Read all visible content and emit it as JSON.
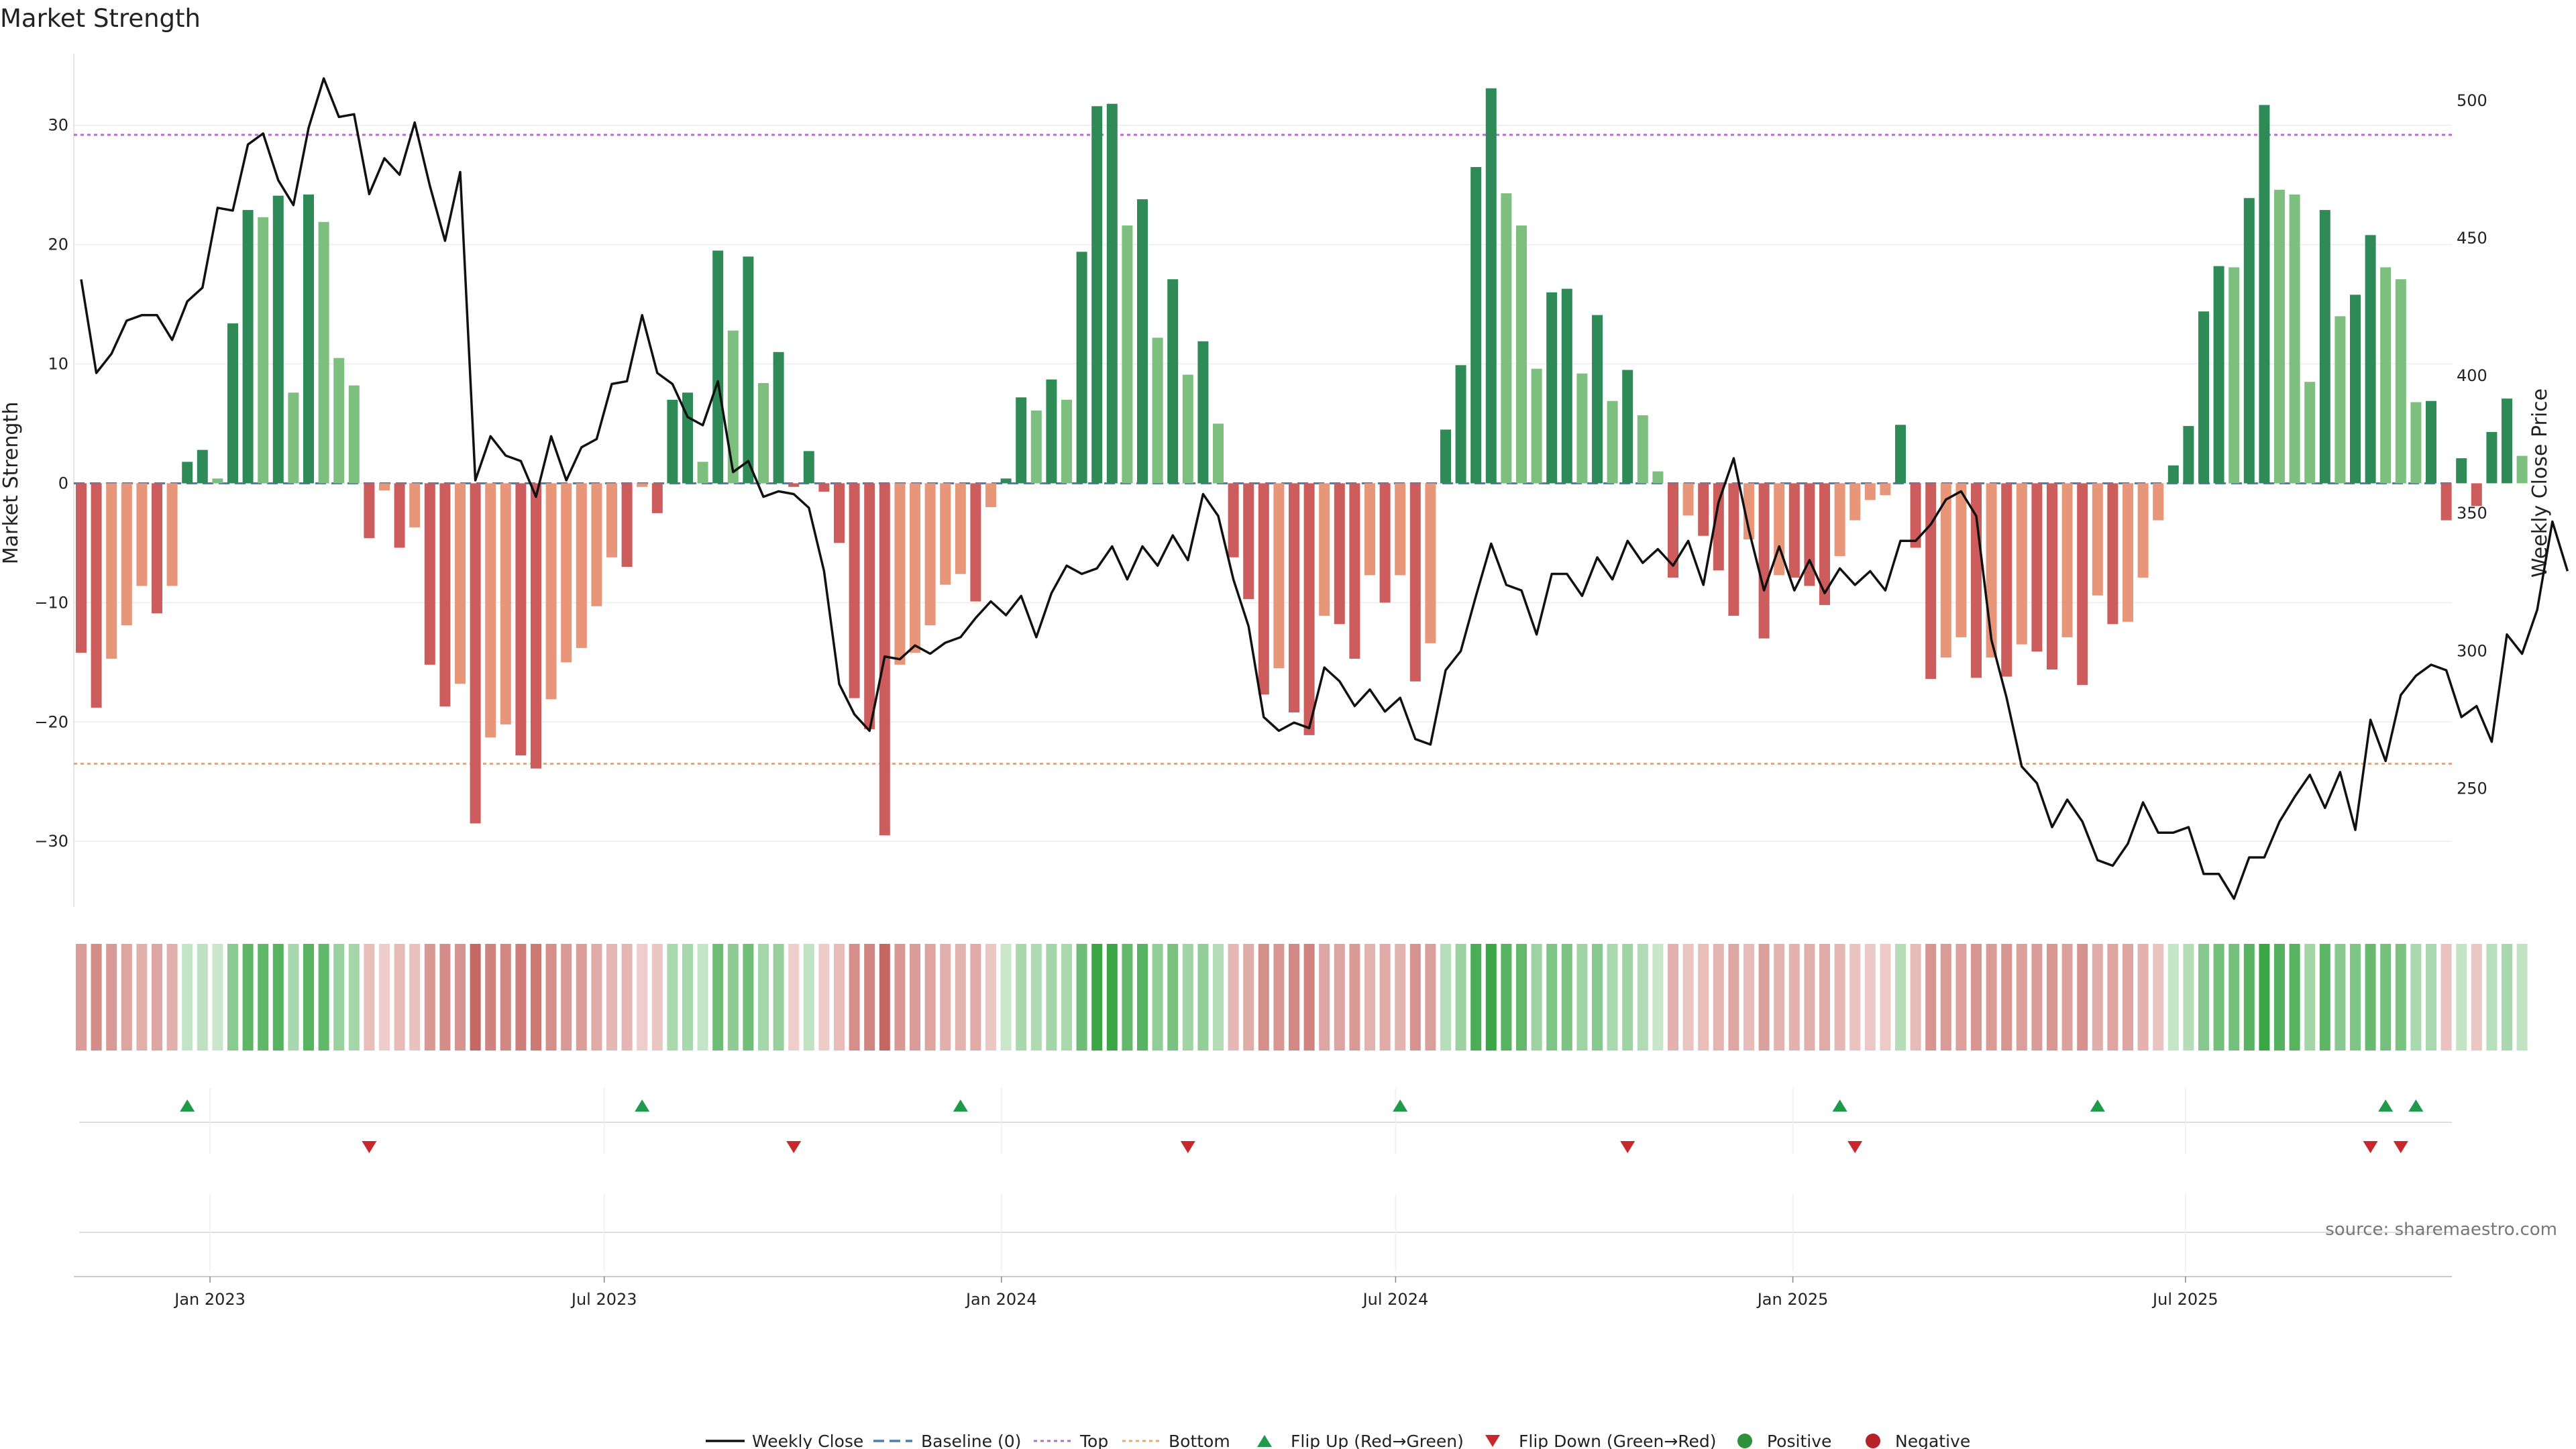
{
  "chart_data": {
    "type": "bar",
    "title": "Market Strength",
    "ylabel": "Market Strength",
    "ylabel_right": "Weekly Close Price",
    "ylim": [
      -35.5,
      36
    ],
    "ylim_right": [
      207,
      517
    ],
    "yticks": [
      -30,
      -20,
      -10,
      0,
      10,
      20,
      30
    ],
    "yticks_right": [
      250,
      300,
      350,
      400,
      450,
      500
    ],
    "top_level": 29.2,
    "bottom_level": -23.5,
    "x_ticks": [
      {
        "index": 8.5,
        "label": "Jan 2023"
      },
      {
        "index": 34.5,
        "label": "Jul 2023"
      },
      {
        "index": 60.7,
        "label": "Jan 2024"
      },
      {
        "index": 86.7,
        "label": "Jul 2024"
      },
      {
        "index": 112.9,
        "label": "Jan 2025"
      },
      {
        "index": 138.8,
        "label": "Jul 2025"
      }
    ],
    "strength": [
      -14.2,
      -18.8,
      -14.7,
      -11.9,
      -8.6,
      -10.9,
      -8.6,
      1.8,
      2.8,
      0.4,
      13.4,
      22.9,
      22.3,
      24.1,
      7.6,
      24.2,
      21.9,
      10.5,
      8.2,
      -4.6,
      -0.6,
      -5.4,
      -3.7,
      -15.2,
      -18.7,
      -16.8,
      -28.5,
      -21.3,
      -20.2,
      -22.8,
      -23.9,
      -18.1,
      -15,
      -13.8,
      -10.3,
      -6.2,
      -7,
      -0.3,
      -2.5,
      7,
      7.6,
      1.8,
      19.5,
      12.8,
      19,
      8.4,
      11,
      -0.3,
      2.7,
      -0.7,
      -5,
      -18,
      -20.6,
      -29.5,
      -15.2,
      -14.2,
      -11.9,
      -8.5,
      -7.6,
      -9.9,
      -2,
      0.4,
      7.2,
      6.1,
      8.7,
      7,
      19.4,
      31.6,
      31.8,
      21.6,
      23.8,
      12.2,
      17.1,
      9.1,
      11.9,
      5,
      -6.2,
      -9.7,
      -17.7,
      -15.5,
      -19.2,
      -21.1,
      -11.1,
      -11.8,
      -14.7,
      -7.7,
      -10,
      -7.7,
      -16.6,
      -13.4,
      4.5,
      9.9,
      26.5,
      33.1,
      24.3,
      21.6,
      9.6,
      16,
      16.3,
      9.2,
      14.1,
      6.9,
      9.5,
      5.7,
      1,
      -7.9,
      -2.7,
      -4.4,
      -7.3,
      -11.1,
      -4.7,
      -13,
      -7.7,
      -7.9,
      -8.6,
      -10.2,
      -6.1,
      -3.1,
      -1.4,
      -1,
      4.9,
      -5.4,
      -16.4,
      -14.6,
      -12.9,
      -16.3,
      -14.6,
      -16.2,
      -13.5,
      -14.1,
      -15.6,
      -12.9,
      -16.9,
      -9.4,
      -11.8,
      -11.6,
      -7.9,
      -3.1,
      1.5,
      4.8,
      14.4,
      18.2,
      18.1,
      23.9,
      31.7,
      24.6,
      24.2,
      8.5,
      22.9,
      14,
      15.8,
      20.8,
      18.1,
      17.1,
      6.8,
      6.9,
      -3.1,
      2.1,
      -1.9,
      4.3,
      7.1,
      2.3
    ],
    "weekly_close": [
      435,
      401,
      408,
      420,
      422,
      422,
      413,
      427,
      432,
      461,
      460,
      484,
      488,
      471,
      462,
      490,
      508,
      494,
      495,
      466,
      479,
      473,
      492,
      469,
      449,
      474,
      362,
      378,
      371,
      369,
      356,
      378,
      362,
      374,
      377,
      397,
      398,
      422,
      401,
      397,
      385,
      382,
      398,
      365,
      369,
      356,
      358,
      357,
      352,
      329,
      288,
      277,
      271,
      298,
      297,
      302,
      299,
      303,
      305,
      312,
      318,
      313,
      320,
      305,
      321,
      331,
      328,
      330,
      338,
      326,
      338,
      331,
      342,
      333,
      357,
      349,
      326,
      309,
      276,
      271,
      274,
      272,
      294,
      289,
      280,
      286,
      278,
      283,
      268,
      266,
      293,
      300,
      320,
      339,
      324,
      322,
      306,
      328,
      328,
      320,
      334,
      326,
      340,
      332,
      337,
      331,
      340,
      324,
      354,
      370,
      344,
      322,
      338,
      322,
      333,
      321,
      330,
      324,
      329,
      322,
      340,
      340,
      346,
      355,
      358,
      349,
      304,
      283,
      258,
      252,
      236,
      246,
      238,
      224,
      222,
      230,
      245,
      234,
      234,
      236,
      219,
      219,
      210,
      225,
      225,
      238,
      247,
      255,
      243,
      256,
      235,
      275,
      260,
      284,
      291,
      295,
      293,
      276,
      280,
      267,
      306,
      299,
      315,
      347,
      329
    ],
    "flip_up": [
      7,
      37,
      58,
      87,
      116,
      133,
      152,
      154
    ],
    "flip_down": [
      19,
      47,
      73,
      102,
      117,
      151,
      153
    ],
    "legend": [
      "Weekly Close",
      "Baseline (0)",
      "Top",
      "Bottom",
      "Flip Up (Red→Green)",
      "Flip Down (Green→Red)",
      "Positive",
      "Negative"
    ],
    "source": "source: sharemaestro.com"
  },
  "colors": {
    "green_dark": "#2e8b57",
    "green_light": "#7dbf7e",
    "red_dark": "#cd5c5c",
    "red_light": "#e8967a",
    "top_line": "#b36bd1",
    "bottom_line": "#f4a46b",
    "baseline": "#4a7fb5",
    "price_line": "#111111",
    "flip_up": "#1e9a4a",
    "flip_down": "#c8282d"
  }
}
